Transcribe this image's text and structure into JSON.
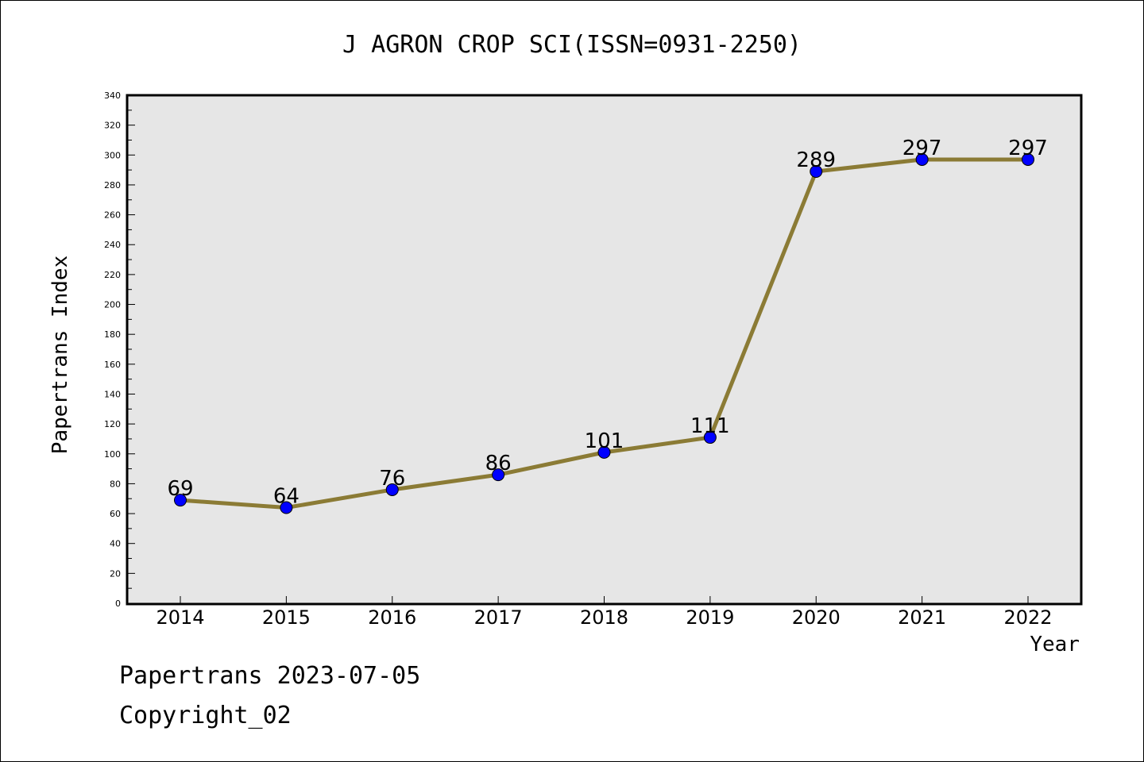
{
  "chart_data": {
    "type": "line",
    "title": "J AGRON CROP SCI(ISSN=0931-2250)",
    "xlabel": "Year",
    "ylabel": "Papertrans Index",
    "categories": [
      "2014",
      "2015",
      "2016",
      "2017",
      "2018",
      "2019",
      "2020",
      "2021",
      "2022"
    ],
    "series": [
      {
        "values": [
          69,
          64,
          76,
          86,
          101,
          111,
          289,
          297,
          297
        ]
      }
    ],
    "ylim": [
      0,
      340
    ],
    "yticks": [
      0,
      20,
      40,
      60,
      80,
      100,
      120,
      140,
      160,
      180,
      200,
      220,
      240,
      260,
      280,
      300,
      320,
      340
    ],
    "grid": false,
    "legend": "none",
    "colors": {
      "line": "#8B7B35",
      "marker": "#0000FF",
      "plot_background": "#E6E6E6"
    }
  },
  "footer": {
    "line1": "Papertrans 2023-07-05",
    "line2": "Copyright_02"
  }
}
